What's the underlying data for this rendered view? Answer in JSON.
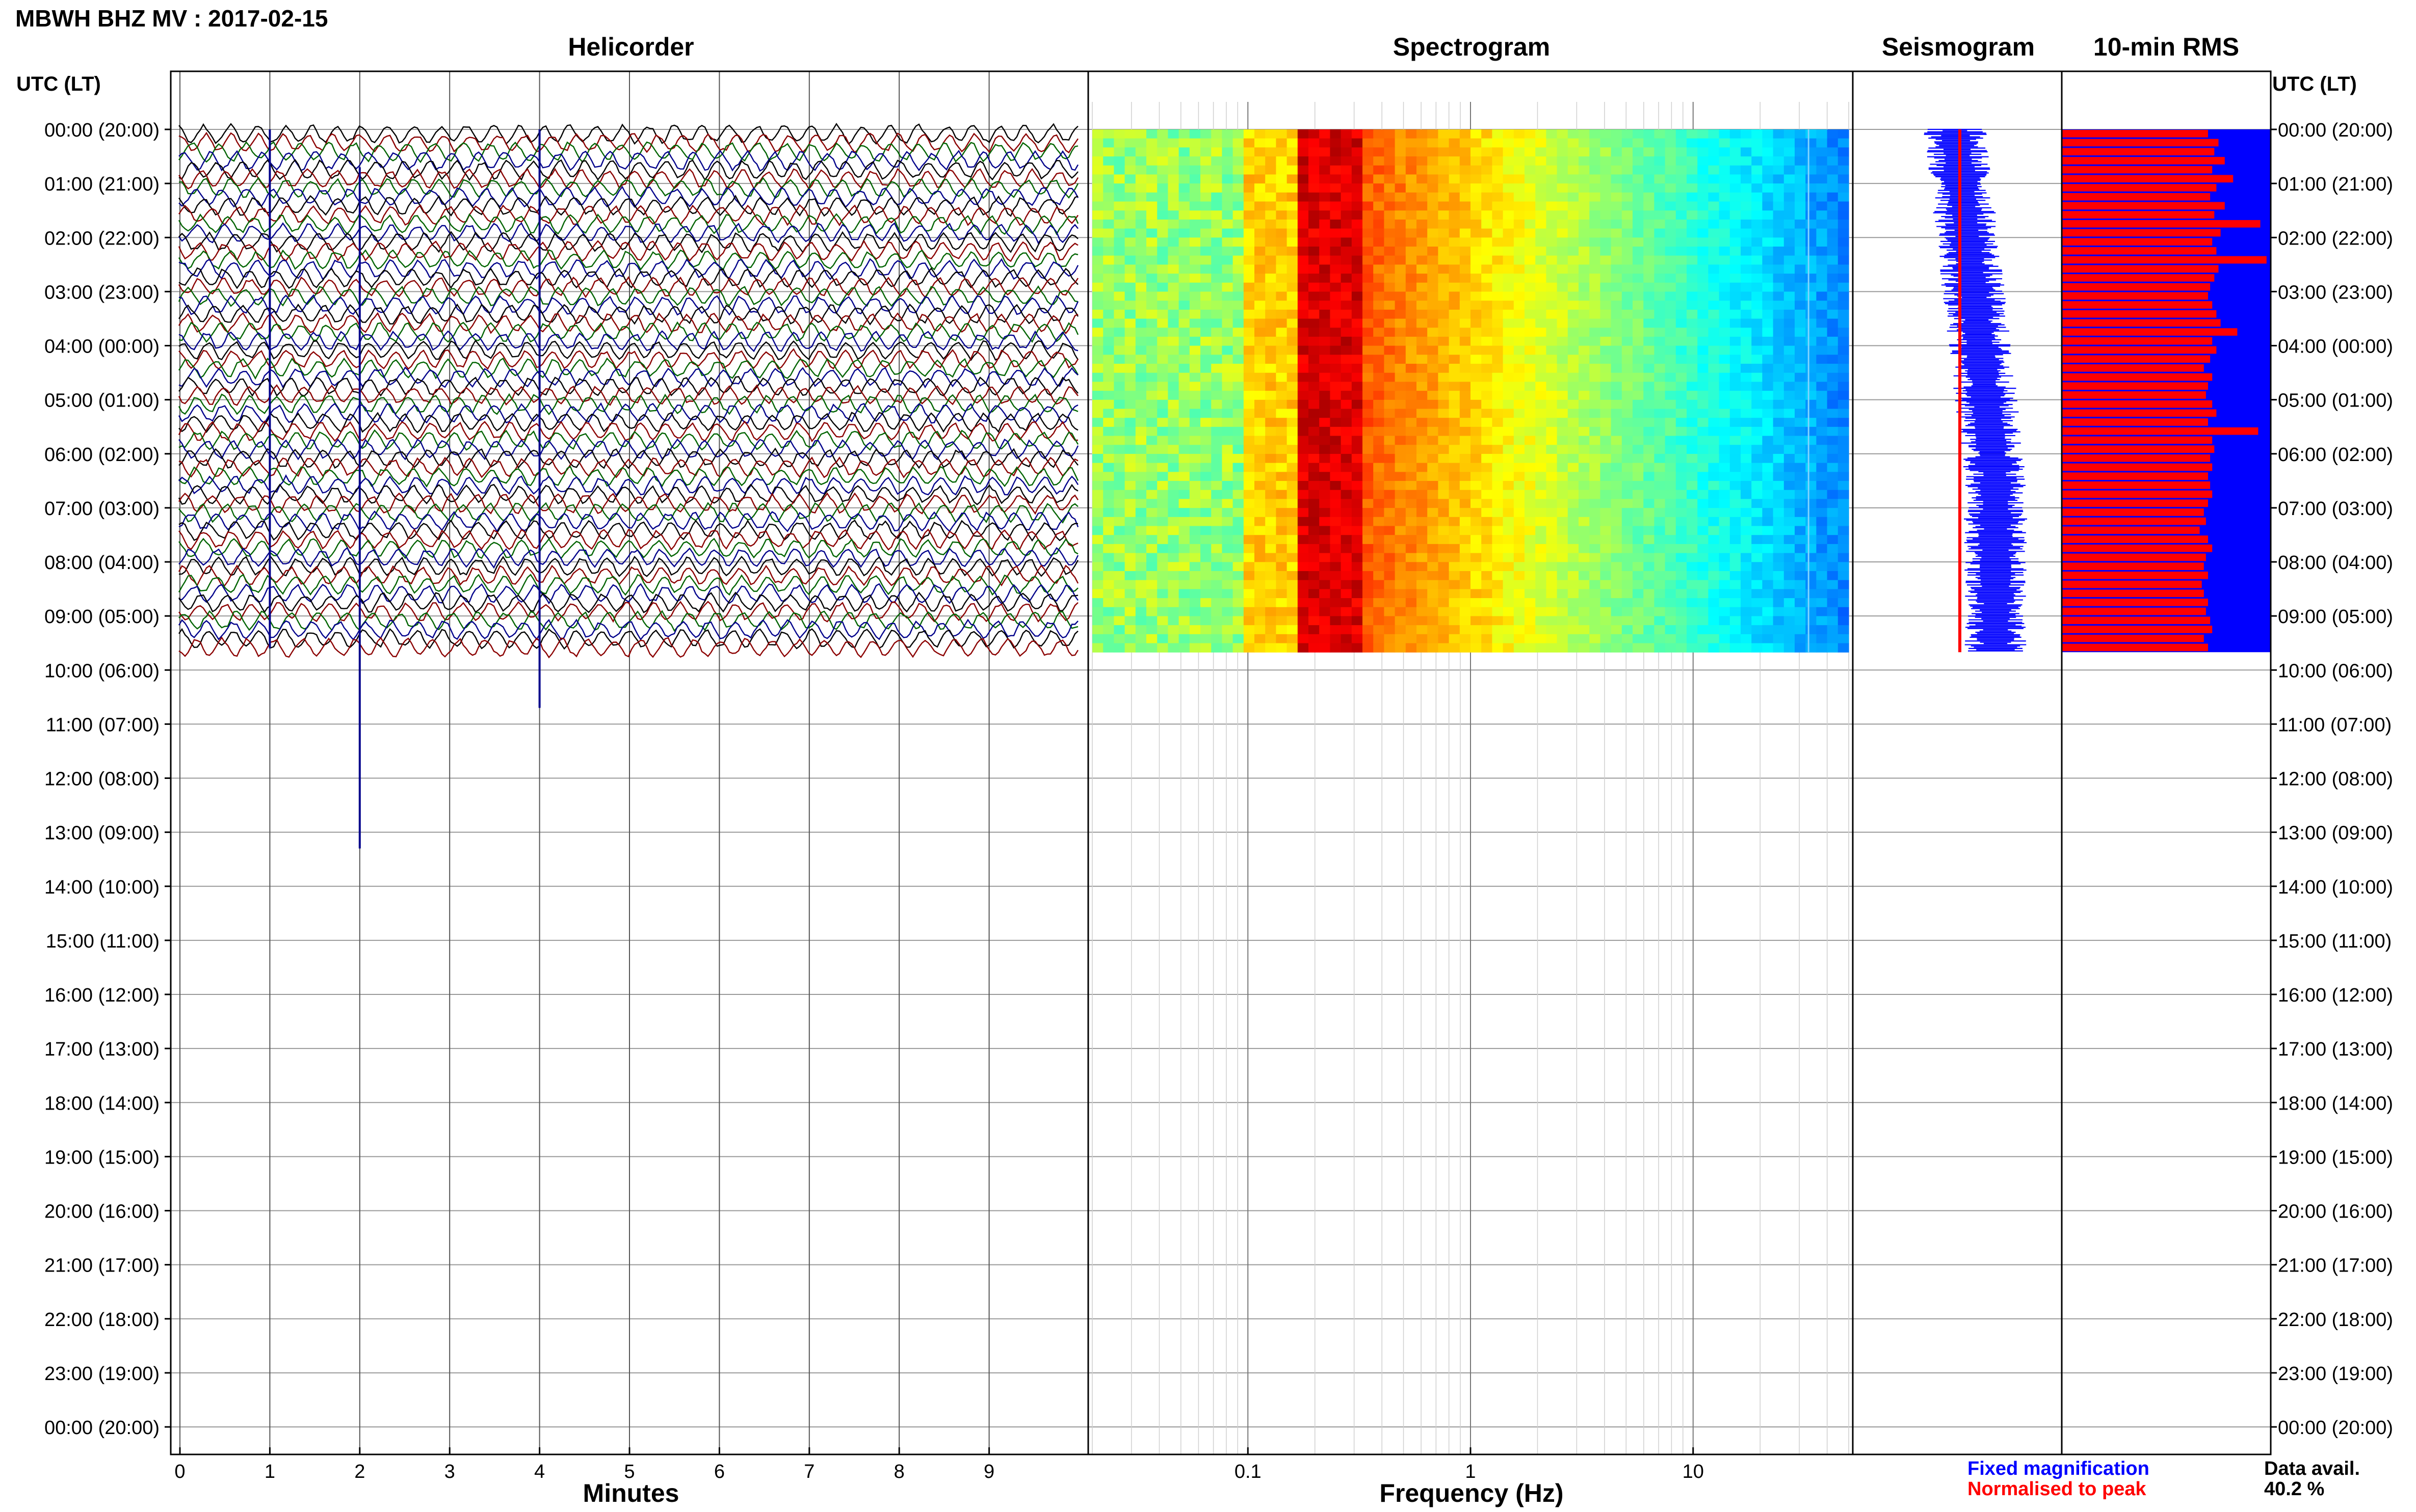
{
  "header": {
    "station_title": "MBWH BHZ MV : 2017-02-15"
  },
  "panels": {
    "helicorder": {
      "title": "Helicorder",
      "xlabel": "Minutes"
    },
    "spectrogram": {
      "title": "Spectrogram",
      "xlabel": "Frequency (Hz)"
    },
    "seismogram": {
      "title": "Seismogram"
    },
    "rms": {
      "title": "10-min RMS"
    }
  },
  "axes": {
    "left_time_label": "UTC (LT)",
    "right_time_label": "UTC (LT)"
  },
  "legend": {
    "fixed_magnification": "Fixed magnification",
    "normalised_to_peak": "Normalised to peak",
    "fixed_color": "#0000ff",
    "normalised_color": "#ff0000"
  },
  "data_availability": {
    "label": "Data avail.",
    "value": "40.2 %"
  },
  "colors": {
    "trace_cycle": [
      "#000000",
      "#8b0000",
      "#006400",
      "#00008b"
    ],
    "rms_bar": "#ff0000",
    "rms_background": "#0000ff",
    "seismogram_fixed": "#0000ff",
    "seismogram_normalised": "#ff0000"
  },
  "chart_data": [
    {
      "type": "line",
      "name": "helicorder",
      "title": "Helicorder",
      "xlabel": "Minutes",
      "x_ticks": [
        "0",
        "1",
        "2",
        "3",
        "4",
        "5",
        "6",
        "7",
        "8",
        "9"
      ],
      "xlim": [
        0,
        10
      ],
      "y_ticks": [
        "00:00 (20:00)",
        "01:00 (21:00)",
        "02:00 (22:00)",
        "03:00 (23:00)",
        "04:00 (00:00)",
        "05:00 (01:00)",
        "06:00 (02:00)",
        "07:00 (03:00)",
        "08:00 (04:00)",
        "09:00 (05:00)",
        "10:00 (06:00)",
        "11:00 (07:00)",
        "12:00 (08:00)",
        "13:00 (09:00)",
        "14:00 (10:00)",
        "15:00 (11:00)",
        "16:00 (12:00)",
        "17:00 (13:00)",
        "18:00 (14:00)",
        "19:00 (15:00)",
        "20:00 (16:00)",
        "21:00 (17:00)",
        "22:00 (18:00)",
        "23:00 (19:00)",
        "00:00 (20:00)"
      ],
      "ylim_hours": [
        0,
        24
      ],
      "trace_lines_recorded": 58,
      "spikes": [
        {
          "minute": 1.0,
          "start_hour": 0.0,
          "end_hour": 9.6
        },
        {
          "minute": 2.0,
          "start_hour": 0.7,
          "end_hour": 13.3
        },
        {
          "minute": 4.0,
          "start_hour": 0.0,
          "end_hour": 10.7
        }
      ]
    },
    {
      "type": "heatmap",
      "name": "spectrogram",
      "title": "Spectrogram",
      "xlabel": "Frequency (Hz)",
      "x_scale": "log",
      "x_ticks": [
        "0.1",
        "1",
        "10"
      ],
      "xlim": [
        0.02,
        50
      ],
      "ylim_hours": [
        0,
        24
      ],
      "data_end_hour": 9.67,
      "dominant_band_hz": [
        0.18,
        0.3
      ],
      "line_features_hz": [
        33
      ]
    },
    {
      "type": "line",
      "name": "seismogram",
      "title": "Seismogram",
      "series": [
        {
          "name": "Fixed magnification",
          "color": "#0000ff"
        },
        {
          "name": "Normalised to peak",
          "color": "#ff0000"
        }
      ],
      "ylim_hours": [
        0,
        24
      ],
      "data_end_hour": 9.67
    },
    {
      "type": "bar",
      "name": "rms",
      "title": "10-min RMS",
      "ylim_hours": [
        0,
        24
      ],
      "data_end_hour": 9.67,
      "bar_fraction": [
        0.7,
        0.75,
        0.73,
        0.78,
        0.72,
        0.82,
        0.74,
        0.71,
        0.78,
        0.73,
        0.95,
        0.76,
        0.72,
        0.74,
        0.98,
        0.75,
        0.73,
        0.71,
        0.7,
        0.72,
        0.74,
        0.76,
        0.84,
        0.72,
        0.74,
        0.71,
        0.68,
        0.72,
        0.7,
        0.69,
        0.72,
        0.74,
        0.7,
        0.94,
        0.72,
        0.73,
        0.71,
        0.72,
        0.7,
        0.71,
        0.72,
        0.7,
        0.68,
        0.69,
        0.66,
        0.7,
        0.72,
        0.69,
        0.68,
        0.7,
        0.67,
        0.68,
        0.7,
        0.69,
        0.71,
        0.72,
        0.68,
        0.7
      ]
    }
  ]
}
